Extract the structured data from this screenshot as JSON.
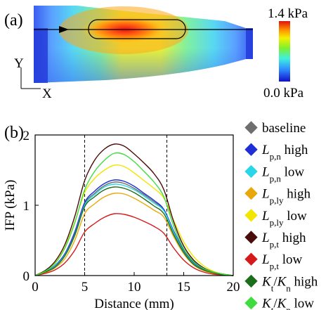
{
  "panel_a": {
    "label": "(a)",
    "colorbar": {
      "max_label": "1.4 kPa",
      "min_label": "0.0 kPa"
    },
    "axes": {
      "y": "Y",
      "x": "X"
    }
  },
  "panel_b": {
    "label": "(b)"
  },
  "chart_data": {
    "type": "line",
    "xlabel": "Distance (mm)",
    "ylabel": "IFP (kPa)",
    "xlim": [
      0,
      20
    ],
    "ylim": [
      0,
      2
    ],
    "xticks": [
      "0",
      "5",
      "10",
      "15",
      "20"
    ],
    "yticks": [
      "0",
      "1",
      "2"
    ],
    "grid": false,
    "vlines": [
      5,
      13.3
    ],
    "legend_position": "right",
    "x": [
      0,
      1,
      2,
      3,
      4,
      5,
      6,
      7,
      8,
      9,
      10,
      11,
      12,
      13,
      14,
      15,
      16,
      17,
      18,
      19,
      20
    ],
    "series": [
      {
        "name": "baseline",
        "label_parts": [
          {
            "t": "baseline"
          }
        ],
        "color": "#6e6e6e",
        "values": [
          0,
          0.05,
          0.13,
          0.3,
          0.6,
          1.02,
          1.17,
          1.28,
          1.33,
          1.31,
          1.24,
          1.15,
          1.05,
          0.93,
          0.62,
          0.35,
          0.18,
          0.09,
          0.04,
          0.01,
          0
        ]
      },
      {
        "name": "Lp,n high",
        "label_parts": [
          {
            "t": "L",
            "s": "it"
          },
          {
            "t": "p,n",
            "s": "sub"
          },
          {
            "t": " high"
          }
        ],
        "color": "#1f2fd6",
        "values": [
          0,
          0.05,
          0.14,
          0.31,
          0.62,
          1.04,
          1.2,
          1.31,
          1.36,
          1.34,
          1.27,
          1.17,
          1.07,
          0.94,
          0.63,
          0.36,
          0.18,
          0.09,
          0.04,
          0.01,
          0
        ]
      },
      {
        "name": "Lp,n low",
        "label_parts": [
          {
            "t": "L",
            "s": "it"
          },
          {
            "t": "p,n",
            "s": "sub"
          },
          {
            "t": " low"
          }
        ],
        "color": "#29d6e8",
        "values": [
          0,
          0.05,
          0.13,
          0.29,
          0.58,
          1.0,
          1.15,
          1.26,
          1.3,
          1.28,
          1.22,
          1.13,
          1.03,
          0.92,
          0.61,
          0.34,
          0.17,
          0.08,
          0.04,
          0.01,
          0
        ]
      },
      {
        "name": "Lp,ly high",
        "label_parts": [
          {
            "t": "L",
            "s": "it"
          },
          {
            "t": "p,ly",
            "s": "sub"
          },
          {
            "t": " high"
          }
        ],
        "color": "#e8a80a",
        "values": [
          0,
          0.04,
          0.11,
          0.24,
          0.5,
          0.88,
          1.02,
          1.12,
          1.17,
          1.16,
          1.1,
          1.02,
          0.93,
          0.83,
          0.55,
          0.31,
          0.15,
          0.07,
          0.03,
          0.01,
          0
        ]
      },
      {
        "name": "Lp,ly low",
        "label_parts": [
          {
            "t": "L",
            "s": "it"
          },
          {
            "t": "p,ly",
            "s": "sub"
          },
          {
            "t": " low"
          }
        ],
        "color": "#f2e600",
        "values": [
          0,
          0.07,
          0.18,
          0.4,
          0.76,
          1.18,
          1.38,
          1.5,
          1.57,
          1.55,
          1.46,
          1.35,
          1.24,
          1.1,
          0.78,
          0.48,
          0.27,
          0.14,
          0.06,
          0.02,
          0
        ]
      },
      {
        "name": "Lp,t high",
        "label_parts": [
          {
            "t": "L",
            "s": "it"
          },
          {
            "t": "p,t",
            "s": "sub"
          },
          {
            "t": " high"
          }
        ],
        "color": "#4a0b0b",
        "values": [
          0,
          0.07,
          0.2,
          0.44,
          0.84,
          1.35,
          1.64,
          1.8,
          1.87,
          1.84,
          1.73,
          1.6,
          1.45,
          1.22,
          0.76,
          0.42,
          0.22,
          0.11,
          0.05,
          0.02,
          0
        ]
      },
      {
        "name": "Lp,t low",
        "label_parts": [
          {
            "t": "L",
            "s": "it"
          },
          {
            "t": "p,t",
            "s": "sub"
          },
          {
            "t": " low"
          }
        ],
        "color": "#d41a1a",
        "values": [
          0,
          0.03,
          0.08,
          0.18,
          0.36,
          0.62,
          0.74,
          0.83,
          0.88,
          0.87,
          0.83,
          0.77,
          0.7,
          0.6,
          0.39,
          0.22,
          0.11,
          0.05,
          0.02,
          0.01,
          0
        ]
      },
      {
        "name": "Kt/Kn high",
        "label_parts": [
          {
            "t": "K",
            "s": "it"
          },
          {
            "t": "t",
            "s": "sub"
          },
          {
            "t": "/"
          },
          {
            "t": "K",
            "s": "it"
          },
          {
            "t": "n",
            "s": "sub"
          },
          {
            "t": " high"
          }
        ],
        "color": "#1c6e1c",
        "values": [
          0,
          0.05,
          0.12,
          0.28,
          0.57,
          0.98,
          1.12,
          1.22,
          1.26,
          1.24,
          1.18,
          1.09,
          0.99,
          0.88,
          0.58,
          0.33,
          0.16,
          0.08,
          0.04,
          0.01,
          0
        ]
      },
      {
        "name": "Kt/Kn low",
        "label_parts": [
          {
            "t": "K",
            "s": "it"
          },
          {
            "t": "t",
            "s": "sub"
          },
          {
            "t": "/"
          },
          {
            "t": "K",
            "s": "it"
          },
          {
            "t": "n",
            "s": "sub"
          },
          {
            "t": " low"
          }
        ],
        "color": "#3fdc3f",
        "values": [
          0,
          0.06,
          0.17,
          0.39,
          0.75,
          1.22,
          1.48,
          1.64,
          1.74,
          1.72,
          1.62,
          1.48,
          1.33,
          1.12,
          0.7,
          0.38,
          0.2,
          0.1,
          0.05,
          0.02,
          0
        ]
      }
    ]
  }
}
